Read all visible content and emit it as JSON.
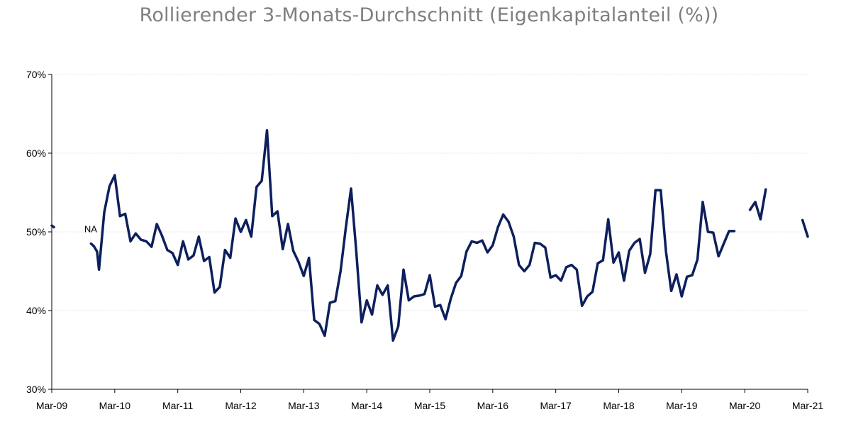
{
  "chart_data": {
    "type": "line",
    "title": "Rollierender 3-Monats-Durchschnitt (Eigenkapitalanteil (%))",
    "xlabel": "",
    "ylabel": "",
    "x_tick_labels": [
      "Mar-09",
      "Mar-10",
      "Mar-11",
      "Mar-12",
      "Mar-13",
      "Mar-14",
      "Mar-15",
      "Mar-16",
      "Mar-17",
      "Mar-18",
      "Mar-19",
      "Mar-20",
      "Mar-21"
    ],
    "y_tick_labels": [
      "30%",
      "40%",
      "50%",
      "60%",
      "70%"
    ],
    "ylim": [
      30,
      70
    ],
    "xlim": [
      "2009-03",
      "2021-03"
    ],
    "grid": true,
    "legend": "none",
    "line_color": "#0d1f5c",
    "annotation": {
      "text": "NA",
      "x": "2009-10",
      "y": 50.5
    },
    "series": [
      {
        "segments": [
          [
            [
              "2009-03",
              50.8
            ]
          ],
          [
            [
              "2009-10-15",
              48.5
            ],
            [
              "2009-11",
              48.2
            ],
            [
              "2009-11-20",
              47.5
            ],
            [
              "2009-12",
              45.2
            ],
            [
              "2010-01",
              52.5
            ],
            [
              "2010-02",
              55.8
            ],
            [
              "2010-03",
              57.2
            ],
            [
              "2010-04",
              52.0
            ],
            [
              "2010-05",
              52.3
            ],
            [
              "2010-06",
              48.8
            ],
            [
              "2010-07",
              49.8
            ],
            [
              "2010-08",
              49.0
            ],
            [
              "2010-09",
              48.8
            ],
            [
              "2010-10",
              48.1
            ],
            [
              "2010-11",
              51.0
            ],
            [
              "2010-12",
              49.5
            ],
            [
              "2011-01",
              47.7
            ],
            [
              "2011-02",
              47.3
            ],
            [
              "2011-03",
              45.8
            ],
            [
              "2011-04",
              48.8
            ],
            [
              "2011-05",
              46.5
            ],
            [
              "2011-06",
              47.0
            ],
            [
              "2011-07",
              49.4
            ],
            [
              "2011-08",
              46.3
            ],
            [
              "2011-09",
              46.8
            ],
            [
              "2011-10",
              42.3
            ],
            [
              "2011-11",
              43.0
            ],
            [
              "2011-12",
              47.7
            ],
            [
              "2012-01",
              46.7
            ],
            [
              "2012-02",
              51.7
            ],
            [
              "2012-03",
              50.0
            ],
            [
              "2012-04",
              51.5
            ],
            [
              "2012-05",
              49.4
            ],
            [
              "2012-06",
              55.7
            ],
            [
              "2012-07",
              56.5
            ],
            [
              "2012-08",
              62.9
            ],
            [
              "2012-09",
              52.0
            ],
            [
              "2012-10",
              52.6
            ],
            [
              "2012-11",
              47.8
            ],
            [
              "2012-12",
              51.0
            ],
            [
              "2013-01",
              47.6
            ],
            [
              "2013-02",
              46.2
            ],
            [
              "2013-03",
              44.4
            ],
            [
              "2013-04",
              46.7
            ],
            [
              "2013-05",
              38.8
            ],
            [
              "2013-06",
              38.3
            ],
            [
              "2013-07",
              36.8
            ],
            [
              "2013-08",
              41.0
            ],
            [
              "2013-09",
              41.2
            ],
            [
              "2013-10",
              45.0
            ],
            [
              "2013-11",
              50.5
            ],
            [
              "2013-12",
              55.5
            ],
            [
              "2014-01",
              47.5
            ],
            [
              "2014-02",
              38.5
            ],
            [
              "2014-03",
              41.3
            ],
            [
              "2014-04",
              39.5
            ],
            [
              "2014-05",
              43.2
            ],
            [
              "2014-06",
              42.0
            ],
            [
              "2014-07",
              43.2
            ],
            [
              "2014-08",
              36.2
            ],
            [
              "2014-09",
              38.0
            ],
            [
              "2014-10",
              45.2
            ],
            [
              "2014-11",
              41.3
            ],
            [
              "2014-12",
              41.8
            ],
            [
              "2015-01",
              41.9
            ],
            [
              "2015-02",
              42.1
            ],
            [
              "2015-03",
              44.5
            ],
            [
              "2015-04",
              40.5
            ],
            [
              "2015-05",
              40.7
            ],
            [
              "2015-06",
              38.9
            ],
            [
              "2015-07",
              41.5
            ],
            [
              "2015-08",
              43.5
            ],
            [
              "2015-09",
              44.4
            ],
            [
              "2015-10",
              47.5
            ],
            [
              "2015-11",
              48.8
            ],
            [
              "2015-12",
              48.6
            ],
            [
              "2016-01",
              48.9
            ],
            [
              "2016-02",
              47.4
            ],
            [
              "2016-03",
              48.3
            ],
            [
              "2016-04",
              50.6
            ],
            [
              "2016-05",
              52.2
            ],
            [
              "2016-06",
              51.3
            ],
            [
              "2016-07",
              49.4
            ],
            [
              "2016-08",
              45.8
            ],
            [
              "2016-09",
              45.0
            ],
            [
              "2016-10",
              45.8
            ],
            [
              "2016-11",
              48.6
            ],
            [
              "2016-12",
              48.5
            ],
            [
              "2017-01",
              48.0
            ],
            [
              "2017-02",
              44.2
            ],
            [
              "2017-03",
              44.5
            ],
            [
              "2017-04",
              43.8
            ],
            [
              "2017-05",
              45.5
            ],
            [
              "2017-06",
              45.8
            ],
            [
              "2017-07",
              45.2
            ],
            [
              "2017-08",
              40.6
            ],
            [
              "2017-09",
              41.8
            ],
            [
              "2017-10",
              42.4
            ],
            [
              "2017-11",
              46.0
            ],
            [
              "2017-12",
              46.4
            ],
            [
              "2018-01",
              51.6
            ],
            [
              "2018-02",
              46.1
            ],
            [
              "2018-03",
              47.4
            ],
            [
              "2018-04",
              43.8
            ],
            [
              "2018-05",
              47.6
            ],
            [
              "2018-06",
              48.6
            ],
            [
              "2018-07",
              49.1
            ],
            [
              "2018-08",
              44.8
            ],
            [
              "2018-09",
              47.2
            ],
            [
              "2018-10",
              55.3
            ],
            [
              "2018-11",
              55.3
            ],
            [
              "2018-12",
              47.5
            ],
            [
              "2019-01",
              42.5
            ],
            [
              "2019-02",
              44.6
            ],
            [
              "2019-03",
              41.8
            ],
            [
              "2019-04",
              44.3
            ],
            [
              "2019-05",
              44.5
            ],
            [
              "2019-06",
              46.5
            ],
            [
              "2019-07",
              53.8
            ],
            [
              "2019-08",
              50.0
            ],
            [
              "2019-09",
              49.9
            ],
            [
              "2019-10",
              46.9
            ],
            [
              "2019-11",
              48.5
            ],
            [
              "2019-12",
              50.1
            ],
            [
              "2020-01",
              50.1
            ]
          ],
          [
            [
              "2020-04",
              52.8
            ],
            [
              "2020-05",
              53.8
            ],
            [
              "2020-06",
              51.6
            ],
            [
              "2020-07",
              55.4
            ]
          ],
          [
            [
              "2021-02",
              51.5
            ],
            [
              "2021-03",
              49.4
            ]
          ]
        ]
      }
    ]
  }
}
